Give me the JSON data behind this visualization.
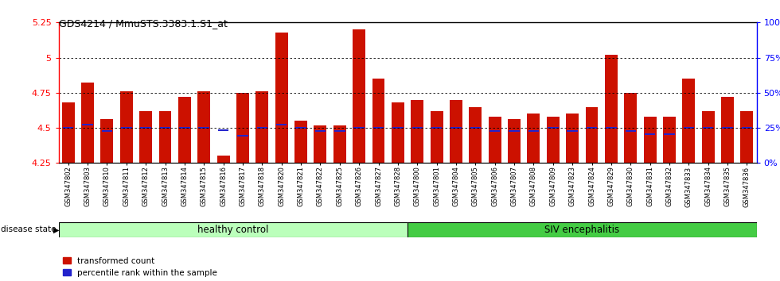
{
  "title": "GDS4214 / MmuSTS.3383.1.S1_at",
  "samples": [
    "GSM347802",
    "GSM347803",
    "GSM347810",
    "GSM347811",
    "GSM347812",
    "GSM347813",
    "GSM347814",
    "GSM347815",
    "GSM347816",
    "GSM347817",
    "GSM347818",
    "GSM347820",
    "GSM347821",
    "GSM347822",
    "GSM347825",
    "GSM347826",
    "GSM347827",
    "GSM347828",
    "GSM347800",
    "GSM347801",
    "GSM347804",
    "GSM347805",
    "GSM347806",
    "GSM347807",
    "GSM347808",
    "GSM347809",
    "GSM347823",
    "GSM347824",
    "GSM347829",
    "GSM347830",
    "GSM347831",
    "GSM347832",
    "GSM347833",
    "GSM347834",
    "GSM347835",
    "GSM347836"
  ],
  "red_values": [
    4.68,
    4.82,
    4.56,
    4.76,
    4.62,
    4.62,
    4.72,
    4.76,
    4.3,
    4.75,
    4.76,
    5.18,
    4.55,
    4.52,
    4.52,
    5.2,
    4.85,
    4.68,
    4.7,
    4.62,
    4.7,
    4.65,
    4.58,
    4.56,
    4.6,
    4.58,
    4.6,
    4.65,
    5.02,
    4.75,
    4.58,
    4.58,
    4.85,
    4.62,
    4.72,
    4.62
  ],
  "blue_bottom": [
    4.495,
    4.515,
    4.47,
    4.495,
    4.495,
    4.495,
    4.495,
    4.495,
    4.475,
    4.44,
    4.495,
    4.515,
    4.495,
    4.47,
    4.47,
    4.495,
    4.495,
    4.495,
    4.495,
    4.495,
    4.495,
    4.495,
    4.47,
    4.47,
    4.47,
    4.495,
    4.47,
    4.495,
    4.495,
    4.47,
    4.45,
    4.45,
    4.495,
    4.495,
    4.495,
    4.495
  ],
  "blue_height": [
    0.012,
    0.012,
    0.012,
    0.012,
    0.012,
    0.012,
    0.012,
    0.012,
    0.012,
    0.012,
    0.012,
    0.012,
    0.012,
    0.012,
    0.012,
    0.012,
    0.012,
    0.012,
    0.012,
    0.012,
    0.012,
    0.012,
    0.012,
    0.012,
    0.012,
    0.012,
    0.012,
    0.012,
    0.012,
    0.012,
    0.012,
    0.012,
    0.012,
    0.012,
    0.012,
    0.012
  ],
  "healthy_count": 18,
  "siv_count": 18,
  "ymin": 4.25,
  "ymax": 5.25,
  "yticks_red": [
    4.25,
    4.5,
    4.75,
    5.0,
    5.25
  ],
  "ytick_labels_red": [
    "4.25",
    "4.5",
    "4.75",
    "5",
    "5.25"
  ],
  "yticks_blue_vals": [
    0,
    25,
    50,
    75,
    100
  ],
  "ytick_labels_blue": [
    "0%",
    "25%",
    "50%",
    "75%",
    "100%"
  ],
  "gridlines": [
    4.5,
    4.75,
    5.0
  ],
  "bar_color_red": "#cc1100",
  "bar_color_blue": "#2222cc",
  "healthy_color": "#bbffbb",
  "siv_color": "#44cc44",
  "bar_width": 0.65,
  "legend_red": "transformed count",
  "legend_blue": "percentile rank within the sample",
  "disease_state_label": "disease state",
  "healthy_label": "healthy control",
  "siv_label": "SIV encephalitis"
}
